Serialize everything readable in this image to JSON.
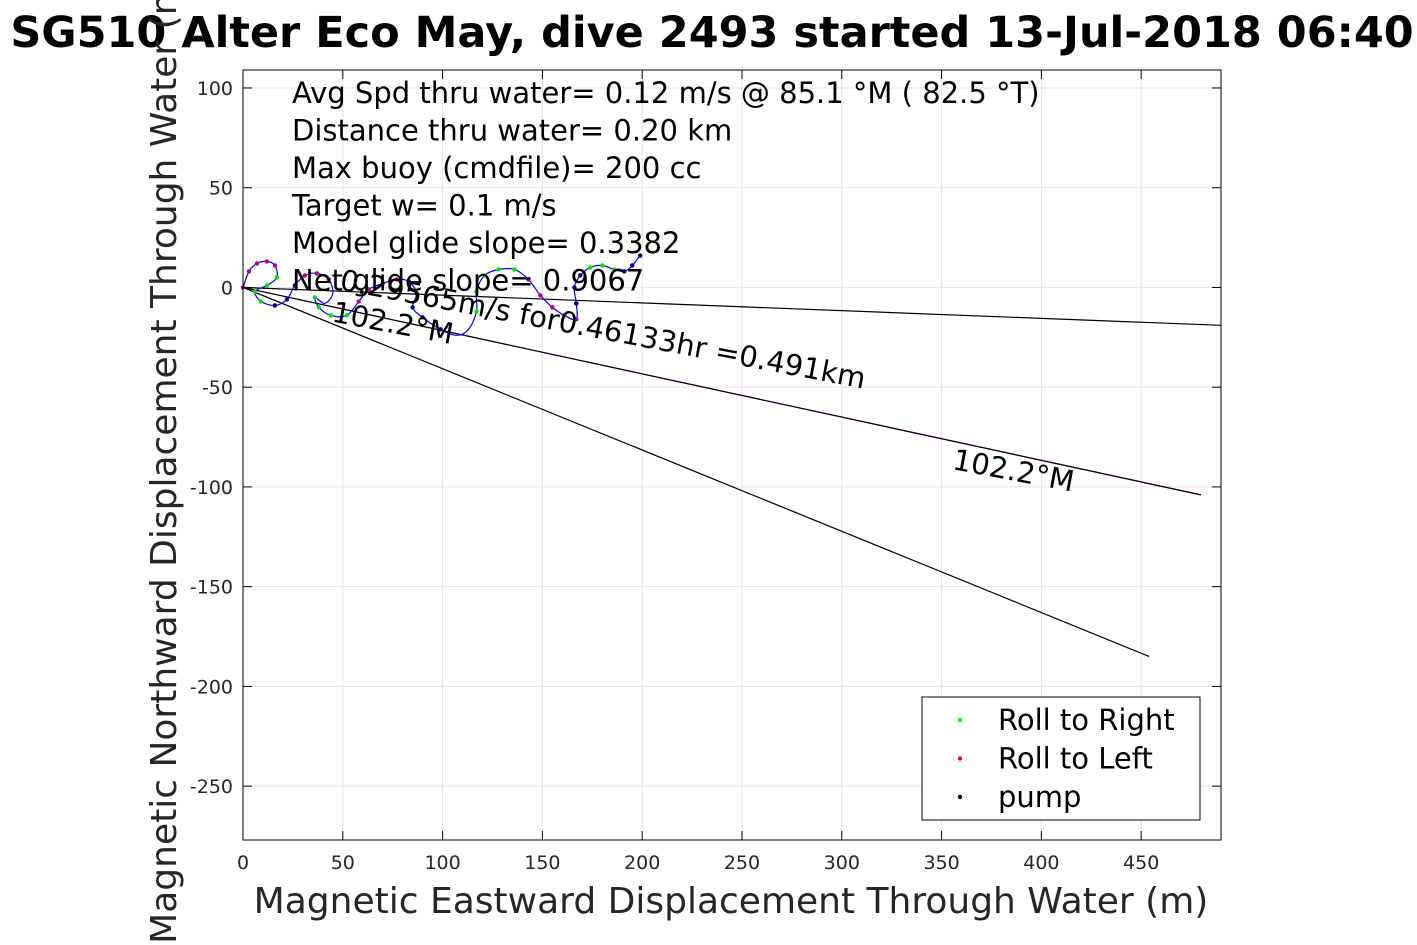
{
  "chart_data": {
    "type": "scatter",
    "title": "SG510 Alter Eco May, dive 2493 started 13-Jul-2018 06:40",
    "xlabel": "Magnetic Eastward Displacement Through Water (m)",
    "ylabel": "Magnetic Northward Displacement Through Water (m)",
    "xlim": [
      0,
      490
    ],
    "ylim": [
      -277,
      109
    ],
    "xticks": [
      0,
      50,
      100,
      150,
      200,
      250,
      300,
      350,
      400,
      450
    ],
    "yticks": [
      -250,
      -200,
      -150,
      -100,
      -50,
      0,
      50,
      100
    ],
    "grid": true,
    "legend_position": "bottom-right",
    "info_lines": [
      "Avg Spd thru water=  0.12 m/s @  85.1 °M ( 82.5 °T)",
      "Distance thru water=  0.20 km",
      "Max buoy (cmdfile)= 200 cc",
      "Target w= 0.1 m/s",
      "Model glide slope= 0.3382",
      "Net glide slope= 0.9067"
    ],
    "annotations": [
      {
        "text": "0.29565m/s for0.46133hr =0.491km",
        "x": 48,
        "y": -1,
        "rotation_deg": 10.7
      },
      {
        "text": "102.2°M",
        "x": 44,
        "y": -17,
        "rotation_deg": 10.7
      },
      {
        "text": "102.2°M",
        "x": 355,
        "y": -91,
        "rotation_deg": 10.7
      }
    ],
    "series": [
      {
        "name": "Roll to Right",
        "color": "#00ff00",
        "marker": "dot"
      },
      {
        "name": "Roll to Left",
        "color": "#ff0000",
        "marker": "dot"
      },
      {
        "name": "pump",
        "color": "#000000",
        "marker": "dot"
      }
    ],
    "lines": [
      {
        "color": "#000000",
        "points": [
          [
            0,
            0
          ],
          [
            490,
            -19
          ]
        ]
      },
      {
        "color": "#cc00cc",
        "points": [
          [
            0,
            0
          ],
          [
            480,
            -104
          ]
        ]
      },
      {
        "color": "#000000",
        "points": [
          [
            0,
            0
          ],
          [
            480,
            -104
          ]
        ]
      },
      {
        "color": "#000000",
        "points": [
          [
            0,
            0
          ],
          [
            454,
            -185
          ]
        ]
      }
    ],
    "track": {
      "color": "#0000ff",
      "points": [
        [
          0,
          0
        ],
        [
          3,
          8
        ],
        [
          7,
          12
        ],
        [
          12,
          13
        ],
        [
          16,
          11
        ],
        [
          17,
          5
        ],
        [
          12,
          1
        ],
        [
          6,
          -2
        ],
        [
          9,
          -7
        ],
        [
          16,
          -9
        ],
        [
          22,
          -6
        ],
        [
          26,
          1
        ],
        [
          31,
          6
        ],
        [
          37,
          7
        ],
        [
          43,
          4
        ],
        [
          45,
          -3
        ],
        [
          41,
          -8
        ],
        [
          36,
          -5
        ],
        [
          38,
          -10
        ],
        [
          44,
          -14
        ],
        [
          52,
          -14
        ],
        [
          58,
          -7
        ],
        [
          63,
          -1
        ],
        [
          70,
          2
        ],
        [
          77,
          4
        ],
        [
          83,
          3
        ],
        [
          87,
          -3
        ],
        [
          85,
          -10
        ],
        [
          90,
          -15
        ],
        [
          99,
          -21
        ],
        [
          107,
          -24
        ],
        [
          113,
          -21
        ],
        [
          117,
          -12
        ],
        [
          117,
          -2
        ],
        [
          121,
          6
        ],
        [
          128,
          9
        ],
        [
          136,
          9
        ],
        [
          143,
          4
        ],
        [
          149,
          -4
        ],
        [
          155,
          -10
        ],
        [
          161,
          -14
        ],
        [
          167,
          -16
        ],
        [
          167,
          -8
        ],
        [
          166,
          0
        ],
        [
          169,
          6
        ],
        [
          174,
          10
        ],
        [
          180,
          11
        ],
        [
          186,
          9
        ],
        [
          191,
          8
        ],
        [
          195,
          11
        ],
        [
          199,
          16
        ]
      ],
      "magenta_segments": [
        [
          0,
          5
        ],
        [
          11,
          14
        ],
        [
          21,
          25
        ],
        [
          37,
          42
        ]
      ],
      "green_segments": [
        [
          5,
          9
        ],
        [
          17,
          20
        ],
        [
          32,
          36
        ],
        [
          44,
          48
        ]
      ],
      "navy_segments": [
        [
          9,
          11
        ],
        [
          25,
          29
        ],
        [
          42,
          44
        ],
        [
          48,
          50
        ]
      ]
    }
  }
}
